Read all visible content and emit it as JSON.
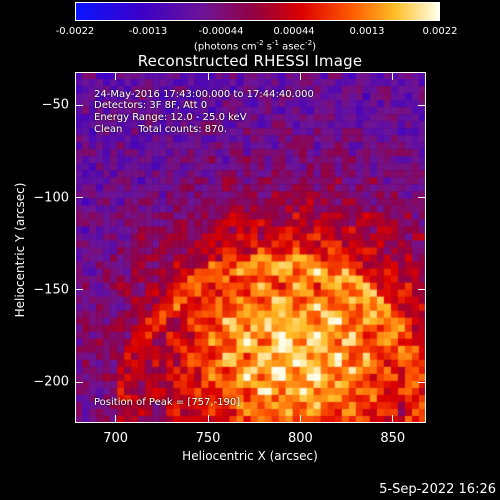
{
  "colorbar": {
    "ticks": [
      "-0.0022",
      "-0.0013",
      "-0.00044",
      "0.00044",
      "0.0013",
      "0.0022"
    ],
    "units_prefix": "(photons cm",
    "units_sup1": "-2",
    "units_mid1": " s",
    "units_sup2": "-1",
    "units_mid2": " asec",
    "units_sup3": "-2",
    "units_suffix": ")"
  },
  "title": "Reconstructed RHESSI Image",
  "annotations": [
    "24-May-2016 17:43:00.000 to 17:44:40.000",
    "Detectors: 3F 8F, Att 0",
    "Energy Range: 12.0 - 25.0 keV",
    "Clean     Total counts: 870."
  ],
  "peak": "Position of Peak = [757,-190]",
  "x_axis": {
    "label": "Heliocentric X (arcsec)",
    "ticks": [
      700,
      750,
      800,
      850
    ]
  },
  "y_axis": {
    "label": "Heliocentric Y (arcsec)",
    "ticks": [
      -50,
      -100,
      -150,
      -200
    ]
  },
  "timestamp": "5-Sep-2022 16:26"
}
